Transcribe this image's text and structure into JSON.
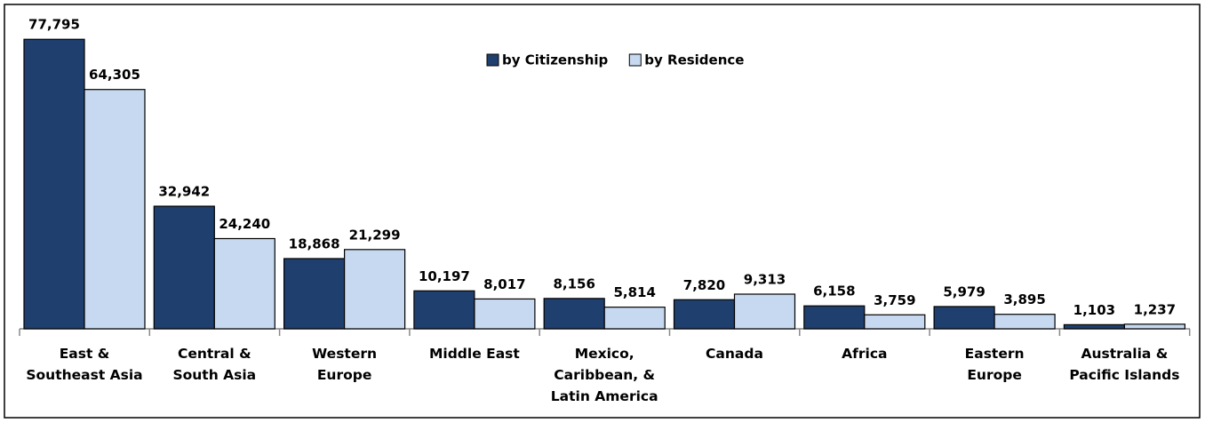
{
  "chart_data": {
    "type": "bar",
    "categories": [
      "East &\nSoutheast Asia",
      "Central &\nSouth Asia",
      "Western\nEurope",
      "Middle East",
      "Mexico,\nCaribbean, &\nLatin America",
      "Canada",
      "Africa",
      "Eastern\nEurope",
      "Australia &\nPacific Islands"
    ],
    "series": [
      {
        "name": "by Citizenship",
        "color": "#1f3f6e",
        "values": [
          77795,
          32942,
          18868,
          10197,
          8156,
          7820,
          6158,
          5979,
          1103
        ],
        "value_labels": [
          "77,795",
          "32,942",
          "18,868",
          "10,197",
          "8,156",
          "7,820",
          "6,158",
          "5,979",
          "1,103"
        ]
      },
      {
        "name": "by Residence",
        "color": "#c6d9f1",
        "values": [
          64305,
          24240,
          21299,
          8017,
          5814,
          9313,
          3759,
          3895,
          1237
        ],
        "value_labels": [
          "64,305",
          "24,240",
          "21,299",
          "8,017",
          "5,814",
          "9,313",
          "3,759",
          "3,895",
          "1,237"
        ]
      }
    ],
    "ylim": [
      0,
      80000
    ]
  }
}
